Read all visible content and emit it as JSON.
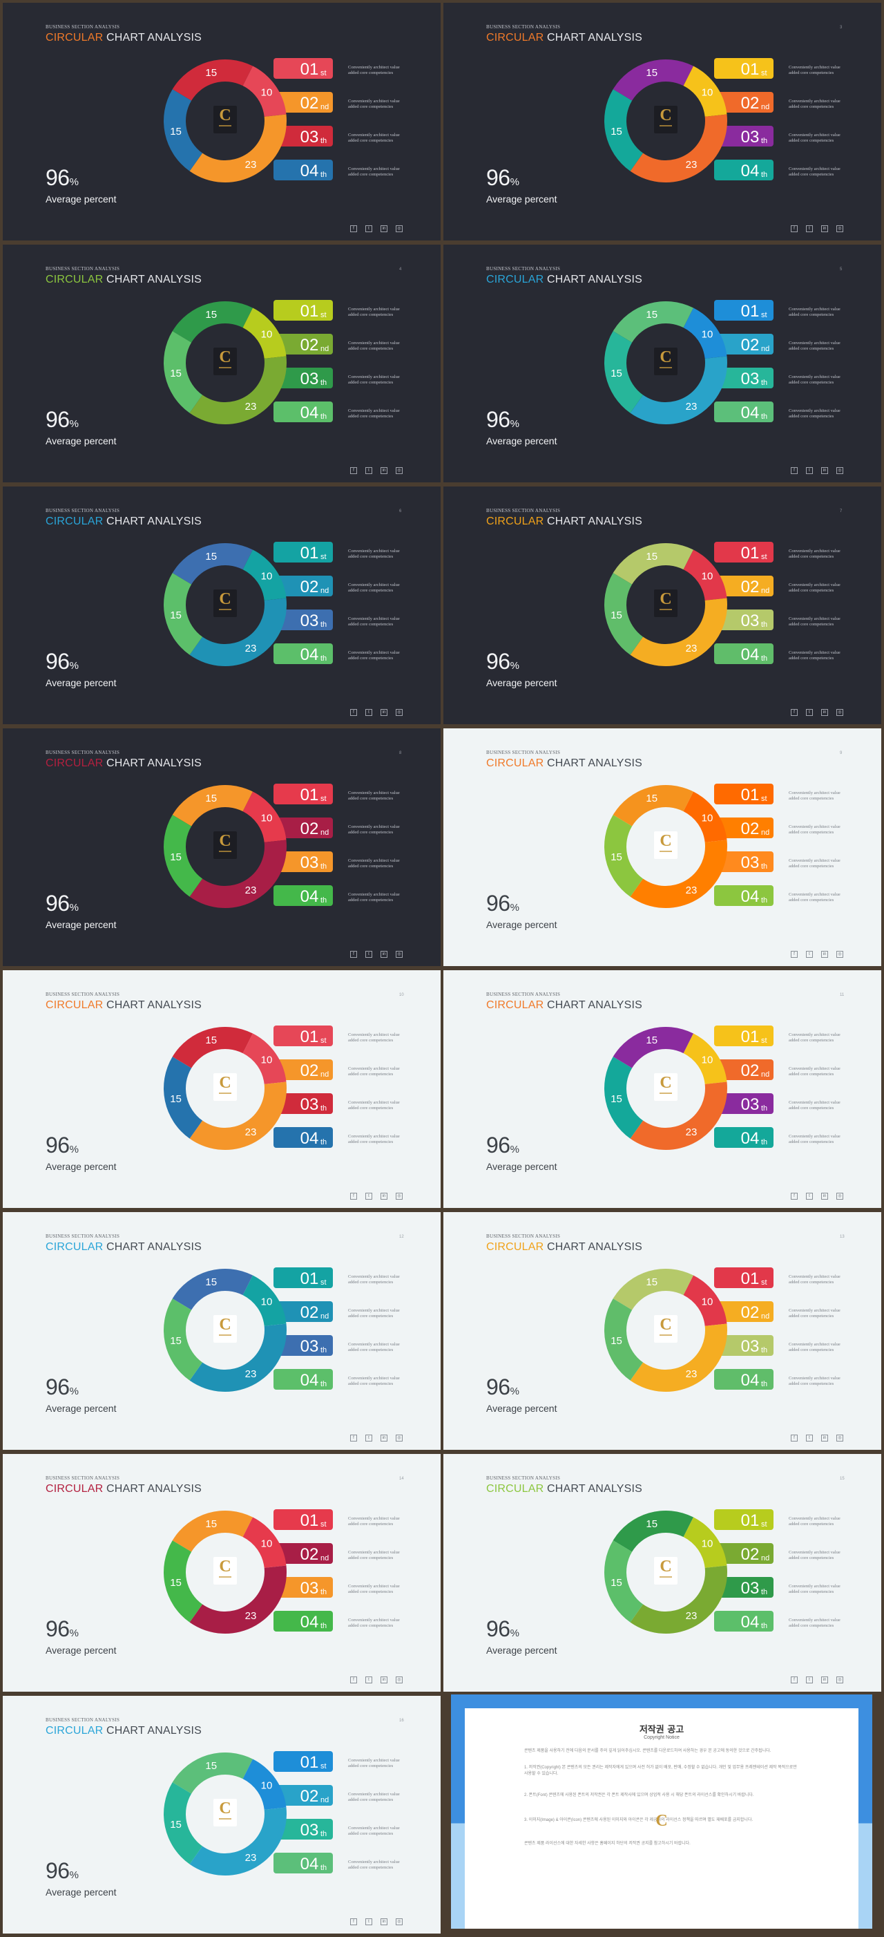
{
  "common": {
    "subtitle": "BUSINESS SECTION ANALYSIS",
    "title_accent": "CIRCULAR",
    "title_rest": " CHART ANALYSIS",
    "percent_value": "96",
    "percent_sign": "%",
    "percent_label": "Average percent",
    "ranks": [
      {
        "num": "01",
        "suffix": "st"
      },
      {
        "num": "02",
        "suffix": "nd"
      },
      {
        "num": "03",
        "suffix": "th"
      },
      {
        "num": "04",
        "suffix": "th"
      }
    ],
    "row_text_1": "Conveniently architect value",
    "row_text_2": "added core competencies",
    "social_icons": [
      "facebook-icon",
      "twitter-icon",
      "linkedin-icon",
      "instagram-icon"
    ],
    "social_glyphs": [
      "f",
      "t",
      "in",
      "◎"
    ],
    "logo_letter": "C"
  },
  "chart_data": {
    "type": "pie",
    "categories": [
      "15",
      "10",
      "23",
      "15"
    ],
    "values": [
      15,
      10,
      23,
      15
    ],
    "segment_labels": [
      "15",
      "10",
      "23",
      "15"
    ]
  },
  "slides": [
    {
      "page": "",
      "theme": "dark",
      "accent": "#f07a2a",
      "colors": [
        "#d02b3b",
        "#e64757",
        "#f5962a",
        "#2573ad"
      ],
      "bars": [
        "#e64757",
        "#f5962a",
        "#d02b3b",
        "#2573ad"
      ]
    },
    {
      "page": "3",
      "theme": "dark",
      "accent": "#f07a2a",
      "colors": [
        "#8a2b9e",
        "#f6c21a",
        "#f06a2a",
        "#14a89a"
      ],
      "bars": [
        "#f6c21a",
        "#f06a2a",
        "#8a2b9e",
        "#14a89a"
      ]
    },
    {
      "page": "4",
      "theme": "dark",
      "accent": "#8cc63f",
      "colors": [
        "#2f9a4a",
        "#b7cc1e",
        "#7aaa32",
        "#5cbf6a"
      ],
      "bars": [
        "#b7cc1e",
        "#7aaa32",
        "#2f9a4a",
        "#5cbf6a"
      ]
    },
    {
      "page": "5",
      "theme": "dark",
      "accent": "#2aa5d8",
      "colors": [
        "#5cbf7a",
        "#1e8ed8",
        "#29a3c9",
        "#27b69a"
      ],
      "bars": [
        "#1e8ed8",
        "#29a3c9",
        "#27b69a",
        "#5cbf7a"
      ]
    },
    {
      "page": "6",
      "theme": "dark",
      "accent": "#2aa5d8",
      "colors": [
        "#3d6fb0",
        "#14a3a3",
        "#1f92b5",
        "#5cbf6a"
      ],
      "bars": [
        "#14a3a3",
        "#1f92b5",
        "#3d6fb0",
        "#5cbf6a"
      ]
    },
    {
      "page": "7",
      "theme": "dark",
      "accent": "#f0a21a",
      "colors": [
        "#b5c96a",
        "#e2384a",
        "#f5ad22",
        "#60bd6a"
      ],
      "bars": [
        "#e2384a",
        "#f5ad22",
        "#b5c96a",
        "#60bd6a"
      ]
    },
    {
      "page": "8",
      "theme": "dark",
      "accent": "#b3203f",
      "colors": [
        "#f5962a",
        "#e63a4c",
        "#a81e46",
        "#44b84a"
      ],
      "bars": [
        "#e63a4c",
        "#a81e46",
        "#f5962a",
        "#44b84a"
      ]
    },
    {
      "page": "9",
      "theme": "light",
      "accent": "#f07a2a",
      "colors": [
        "#f5931e",
        "#ff6a00",
        "#ff7f00",
        "#8cc63f"
      ],
      "bars": [
        "#ff6a00",
        "#ff7f00",
        "#ff8a1e",
        "#8cc63f"
      ]
    },
    {
      "page": "10",
      "theme": "light",
      "accent": "#f07a2a",
      "colors": [
        "#d02b3b",
        "#e64757",
        "#f5962a",
        "#2573ad"
      ],
      "bars": [
        "#e64757",
        "#f5962a",
        "#d02b3b",
        "#2573ad"
      ]
    },
    {
      "page": "11",
      "theme": "light",
      "accent": "#f07a2a",
      "colors": [
        "#8a2b9e",
        "#f6c21a",
        "#f06a2a",
        "#14a89a"
      ],
      "bars": [
        "#f6c21a",
        "#f06a2a",
        "#8a2b9e",
        "#14a89a"
      ]
    },
    {
      "page": "12",
      "theme": "light",
      "accent": "#2aa5d8",
      "colors": [
        "#3d6fb0",
        "#14a3a3",
        "#1f92b5",
        "#5cbf6a"
      ],
      "bars": [
        "#14a3a3",
        "#1f92b5",
        "#3d6fb0",
        "#5cbf6a"
      ]
    },
    {
      "page": "13",
      "theme": "light",
      "accent": "#f0a21a",
      "colors": [
        "#b5c96a",
        "#e2384a",
        "#f5ad22",
        "#60bd6a"
      ],
      "bars": [
        "#e2384a",
        "#f5ad22",
        "#b5c96a",
        "#60bd6a"
      ]
    },
    {
      "page": "14",
      "theme": "light",
      "accent": "#b3203f",
      "colors": [
        "#f5962a",
        "#e63a4c",
        "#a81e46",
        "#44b84a"
      ],
      "bars": [
        "#e63a4c",
        "#a81e46",
        "#f5962a",
        "#44b84a"
      ]
    },
    {
      "page": "15",
      "theme": "light",
      "accent": "#8cc63f",
      "colors": [
        "#2f9a4a",
        "#b7cc1e",
        "#7aaa32",
        "#5cbf6a"
      ],
      "bars": [
        "#b7cc1e",
        "#7aaa32",
        "#2f9a4a",
        "#5cbf6a"
      ]
    },
    {
      "page": "16",
      "theme": "light",
      "accent": "#2aa5d8",
      "colors": [
        "#5cbf7a",
        "#1e8ed8",
        "#29a3c9",
        "#27b69a"
      ],
      "bars": [
        "#1e8ed8",
        "#29a3c9",
        "#27b69a",
        "#5cbf7a"
      ]
    }
  ],
  "notice": {
    "title": "저작권 공고",
    "subtitle": "Copyright Notice",
    "paragraphs": [
      "콘텐츠 제품을 사용하기 전에 다음의 문서를 주의 깊게 읽어주십시오. 콘텐츠를 다운로드하여 사용하는 경우 본 공고에 동의한 것으로 간주됩니다.",
      "1. 저작권(Copyright) 본 콘텐츠의 모든 권리는 제작자에게 있으며 사전 허가 없이 배포, 판매, 수정할 수 없습니다. 개인 및 업무용 프레젠테이션 제작 목적으로만 사용할 수 있습니다.",
      "2. 폰트(Font) 콘텐츠에 사용된 폰트의 저작권은 각 폰트 제작사에 있으며 상업적 사용 시 해당 폰트의 라이선스를 확인하시기 바랍니다.",
      "3. 이미지(Image) & 아이콘(Icon) 콘텐츠에 사용된 이미지와 아이콘은 각 제공처의 라이선스 정책을 따르며 별도 재배포를 금지합니다.",
      "콘텐츠 제품 라이선스에 대한 자세한 사항은 홈페이지 하단의 저작권 공지를 참고하시기 바랍니다."
    ]
  }
}
